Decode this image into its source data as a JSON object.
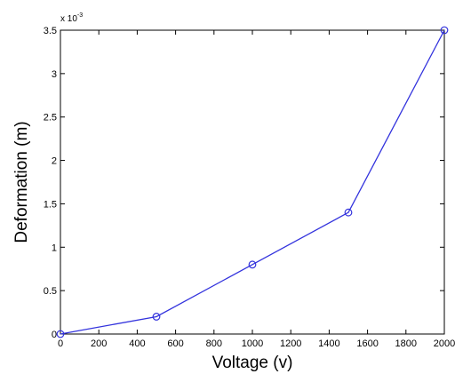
{
  "chart_data": {
    "type": "line",
    "title": "",
    "xlabel": "Voltage (v)",
    "ylabel": "Deformation (m)",
    "xlim": [
      0,
      2000
    ],
    "ylim": [
      0,
      3.5
    ],
    "x_ticks": [
      0,
      200,
      400,
      600,
      800,
      1000,
      1200,
      1400,
      1600,
      1800,
      2000
    ],
    "y_ticks": [
      0,
      0.5,
      1,
      1.5,
      2,
      2.5,
      3,
      3.5
    ],
    "y_tick_labels": [
      "0",
      "0.5",
      "1",
      "1.5",
      "2",
      "2.5",
      "3",
      "3.5"
    ],
    "y_exponent": {
      "base": "x 10",
      "power": "-3"
    },
    "grid": false,
    "series": [
      {
        "x": [
          0,
          500,
          1000,
          1500,
          2000
        ],
        "y": [
          0,
          0.2,
          0.8,
          1.4,
          3.5
        ],
        "color": "#3333dd",
        "marker": "circle"
      }
    ]
  }
}
